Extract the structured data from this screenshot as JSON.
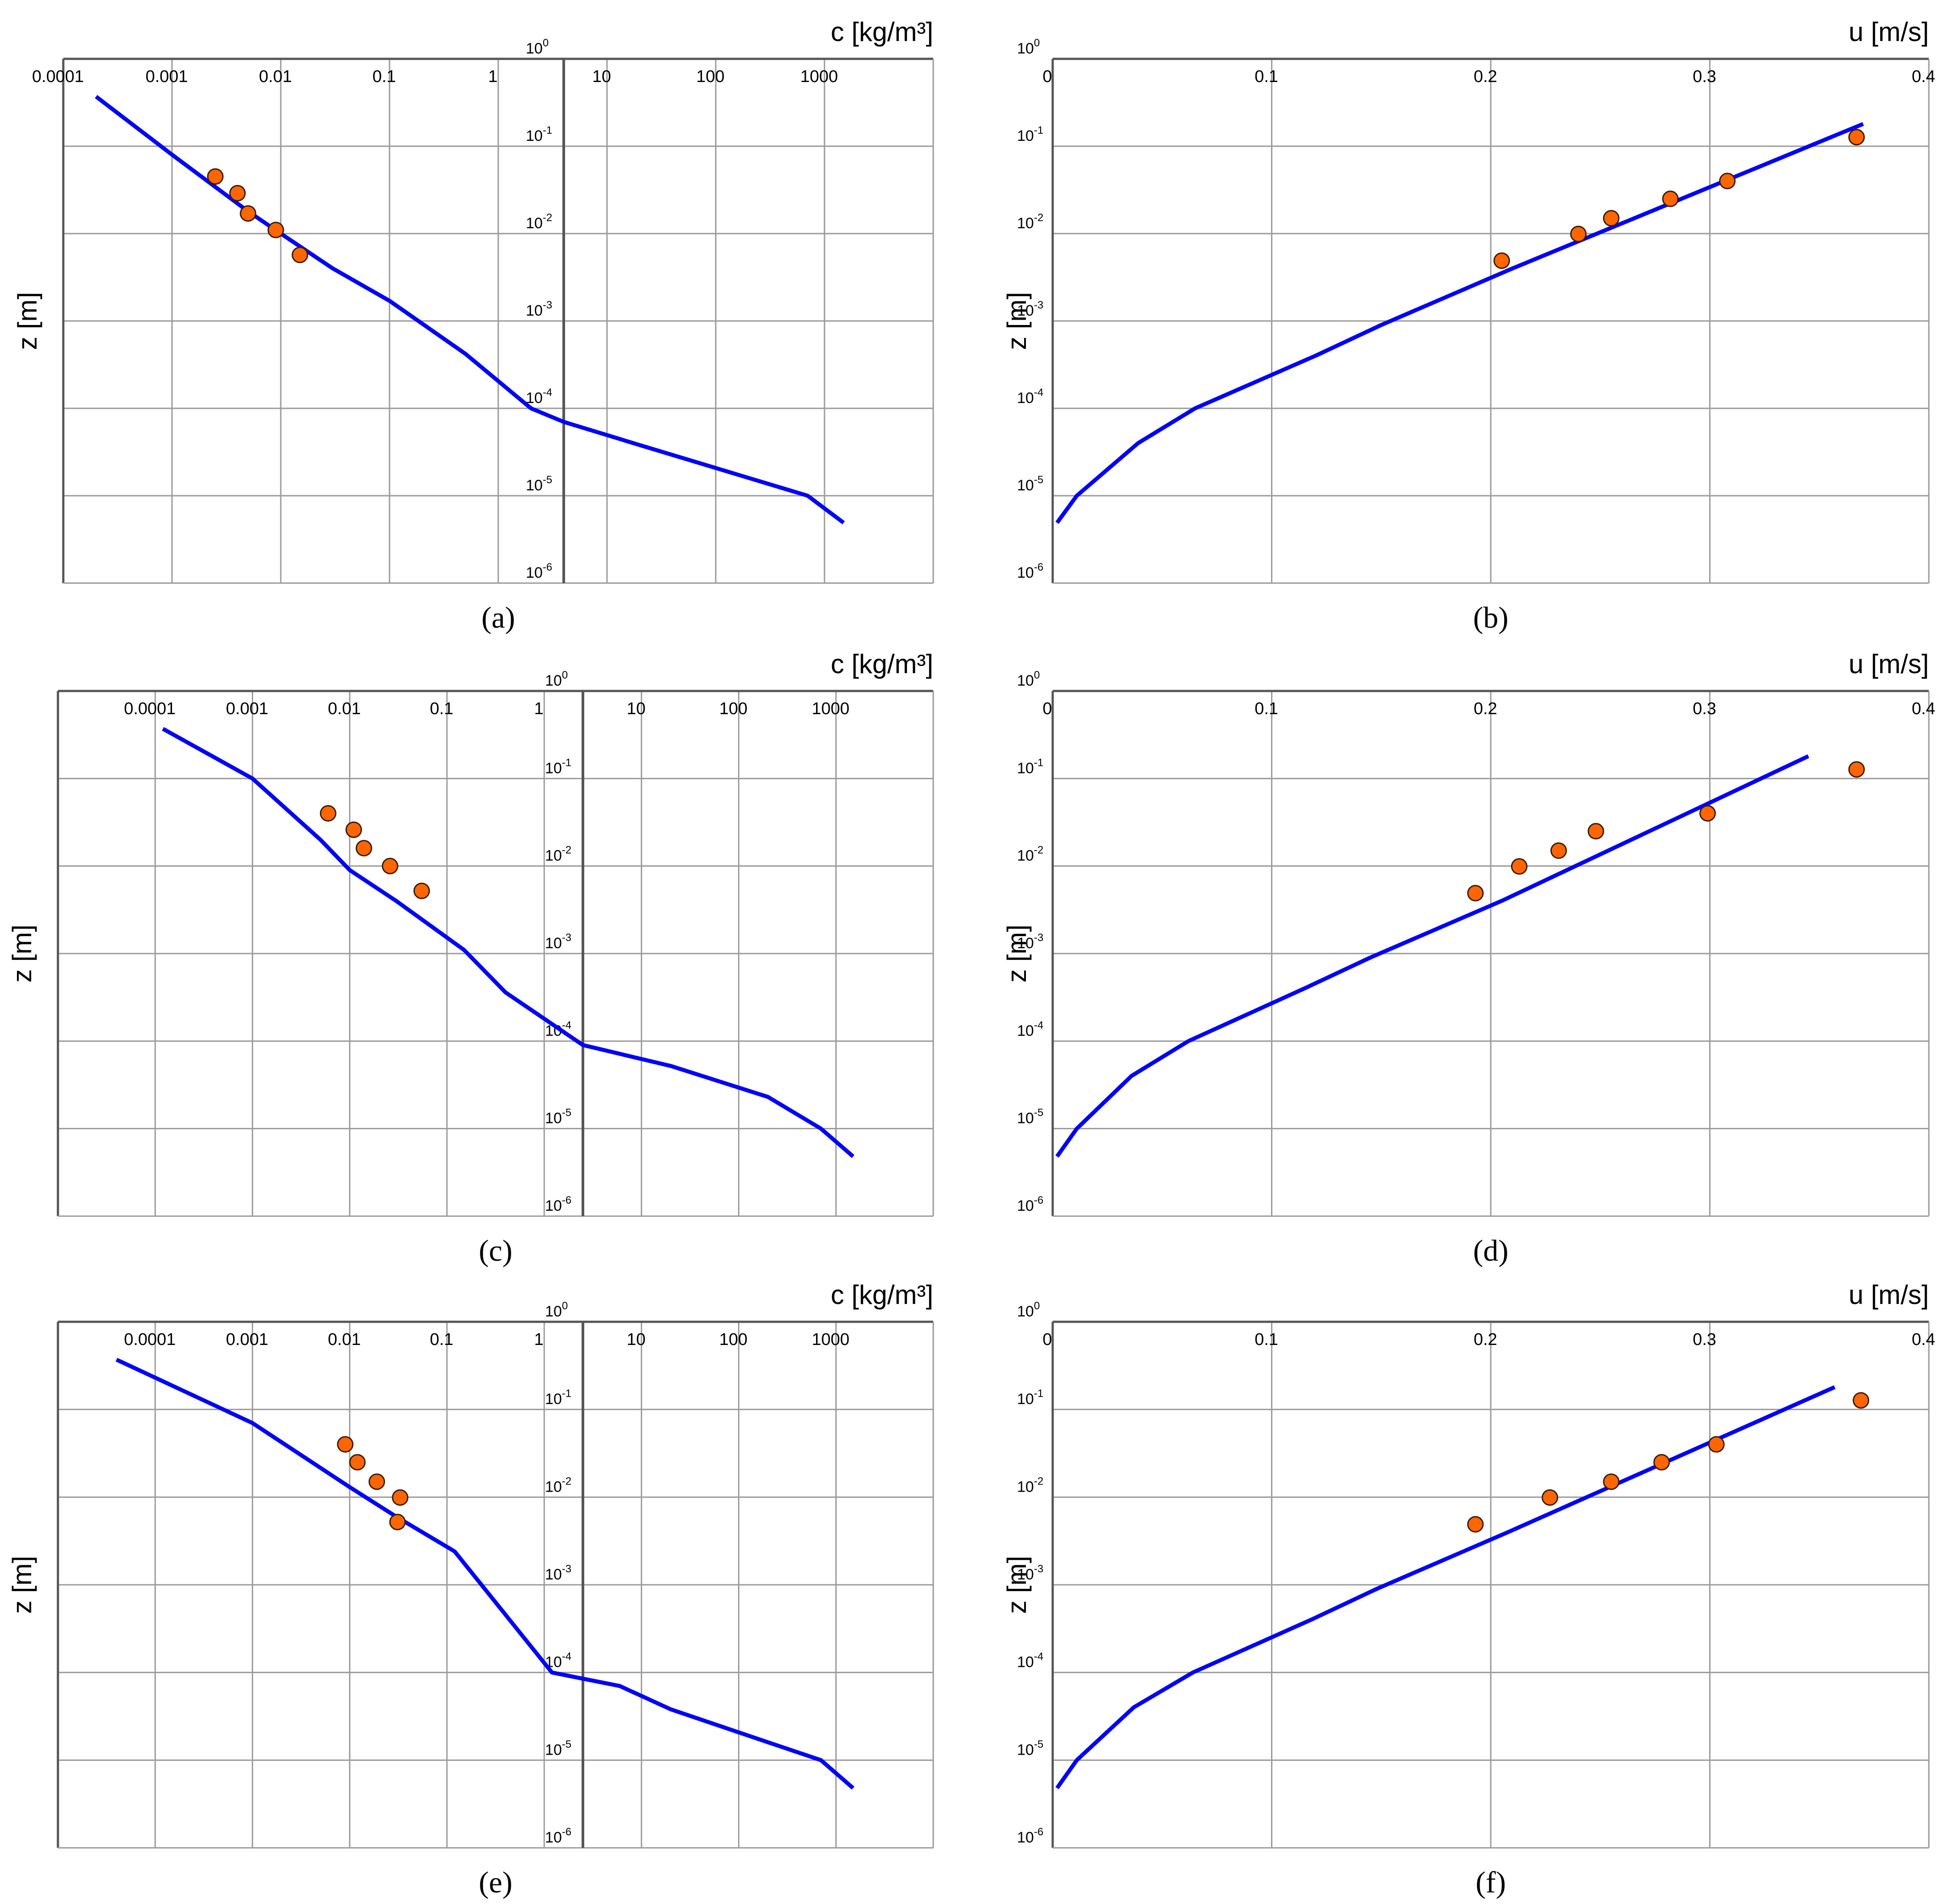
{
  "chart_data": [
    {
      "type": "line",
      "panel_label": "(a)",
      "x_unit_label": "c [kg/m³]",
      "ylabel": "z [m]",
      "xscale": "log",
      "yscale": "log",
      "xlim": [
        0.0001,
        10000
      ],
      "ylim": [
        1,
        1e-06
      ],
      "x_ticks": [
        0.0001,
        0.001,
        0.01,
        0.1,
        1,
        10,
        100,
        1000
      ],
      "x_tick_labels": [
        "0.0001",
        "0.001",
        "0.01",
        "0.1",
        "1",
        "10",
        "100",
        "1000"
      ],
      "y_ticks": [
        1,
        0.1,
        0.01,
        0.001,
        0.0001,
        1e-05,
        1e-06
      ],
      "y_tick_labels": [
        [
          "10",
          "0"
        ],
        [
          "10",
          "-1"
        ],
        [
          "10",
          "-2"
        ],
        [
          "10",
          "-3"
        ],
        [
          "10",
          "-4"
        ],
        [
          "10",
          "-5"
        ],
        [
          "10",
          "-6"
        ]
      ],
      "grid": true,
      "y_axis_at_x": 4,
      "line": {
        "x": [
          0.0002,
          0.001,
          0.005,
          0.01,
          0.03,
          0.1,
          0.5,
          2,
          4,
          20,
          200,
          700,
          1500
        ],
        "y": [
          0.37,
          0.08,
          0.018,
          0.01,
          0.004,
          0.0017,
          0.00042,
          0.0001,
          7e-05,
          3.8e-05,
          1.6e-05,
          1e-05,
          4.9e-06
        ]
      },
      "points": {
        "x": [
          0.0025,
          0.004,
          0.005,
          0.009,
          0.015
        ],
        "y": [
          0.045,
          0.029,
          0.017,
          0.011,
          0.0057
        ]
      },
      "colors": {
        "line": "#0000ff",
        "points": "#ff6600"
      }
    },
    {
      "type": "line",
      "panel_label": "(b)",
      "x_unit_label": "u [m/s]",
      "ylabel": "z [m]",
      "xscale": "linear",
      "yscale": "log",
      "xlim": [
        0,
        0.4
      ],
      "ylim": [
        1,
        1e-06
      ],
      "x_ticks": [
        0,
        0.1,
        0.2,
        0.3,
        0.4
      ],
      "x_tick_labels": [
        "0",
        "0.1",
        "0.2",
        "0.3",
        "0.4"
      ],
      "y_ticks": [
        1,
        0.1,
        0.01,
        0.001,
        0.0001,
        1e-05,
        1e-06
      ],
      "y_tick_labels": [
        [
          "10",
          "0"
        ],
        [
          "10",
          "-1"
        ],
        [
          "10",
          "-2"
        ],
        [
          "10",
          "-3"
        ],
        [
          "10",
          "-4"
        ],
        [
          "10",
          "-5"
        ],
        [
          "10",
          "-6"
        ]
      ],
      "grid": true,
      "line": {
        "x": [
          0.002,
          0.011,
          0.039,
          0.065,
          0.12,
          0.15,
          0.21,
          0.37
        ],
        "y": [
          4.9e-06,
          1e-05,
          4e-05,
          0.0001,
          0.0004,
          0.0009,
          0.004,
          0.18
        ]
      },
      "points": {
        "x": [
          0.205,
          0.24,
          0.255,
          0.282,
          0.308,
          0.367
        ],
        "y": [
          0.0049,
          0.0099,
          0.015,
          0.025,
          0.04,
          0.127
        ]
      },
      "colors": {
        "line": "#0000ff",
        "points": "#ff6600"
      }
    },
    {
      "type": "line",
      "panel_label": "(c)",
      "x_unit_label": "c [kg/m³]",
      "ylabel": "z [m]",
      "xscale": "log",
      "yscale": "log",
      "xlim": [
        1e-05,
        10000
      ],
      "ylim": [
        1,
        1e-06
      ],
      "x_ticks": [
        0.0001,
        0.001,
        0.01,
        0.1,
        1,
        10,
        100,
        1000
      ],
      "x_tick_labels": [
        "0.0001",
        "0.001",
        "0.01",
        "0.1",
        "1",
        "10",
        "100",
        "1000"
      ],
      "y_ticks": [
        1,
        0.1,
        0.01,
        0.001,
        0.0001,
        1e-05,
        1e-06
      ],
      "y_tick_labels": [
        [
          "10",
          "0"
        ],
        [
          "10",
          "-1"
        ],
        [
          "10",
          "-2"
        ],
        [
          "10",
          "-3"
        ],
        [
          "10",
          "-4"
        ],
        [
          "10",
          "-5"
        ],
        [
          "10",
          "-6"
        ]
      ],
      "grid": true,
      "y_axis_at_x": 2.5,
      "line": {
        "x": [
          0.00012,
          0.001,
          0.005,
          0.01,
          0.03,
          0.15,
          0.4,
          2.5,
          20,
          200,
          700,
          1500
        ],
        "y": [
          0.37,
          0.1,
          0.02,
          0.009,
          0.004,
          0.0011,
          0.00036,
          9e-05,
          5.2e-05,
          2.3e-05,
          1e-05,
          4.8e-06
        ]
      },
      "points": {
        "x": [
          0.006,
          0.011,
          0.014,
          0.026,
          0.055
        ],
        "y": [
          0.04,
          0.026,
          0.016,
          0.01,
          0.0052
        ]
      },
      "colors": {
        "line": "#0000ff",
        "points": "#ff6600"
      }
    },
    {
      "type": "line",
      "panel_label": "(d)",
      "x_unit_label": "u [m/s]",
      "ylabel": "z [m]",
      "xscale": "linear",
      "yscale": "log",
      "xlim": [
        0,
        0.4
      ],
      "ylim": [
        1,
        1e-06
      ],
      "x_ticks": [
        0,
        0.1,
        0.2,
        0.3,
        0.4
      ],
      "x_tick_labels": [
        "0",
        "0.1",
        "0.2",
        "0.3",
        "0.4"
      ],
      "y_ticks": [
        1,
        0.1,
        0.01,
        0.001,
        0.0001,
        1e-05,
        1e-06
      ],
      "y_tick_labels": [
        [
          "10",
          "0"
        ],
        [
          "10",
          "-1"
        ],
        [
          "10",
          "-2"
        ],
        [
          "10",
          "-3"
        ],
        [
          "10",
          "-4"
        ],
        [
          "10",
          "-5"
        ],
        [
          "10",
          "-6"
        ]
      ],
      "grid": true,
      "line": {
        "x": [
          0.002,
          0.011,
          0.036,
          0.062,
          0.115,
          0.145,
          0.205,
          0.345
        ],
        "y": [
          4.8e-06,
          1e-05,
          4e-05,
          0.0001,
          0.0004,
          0.0009,
          0.004,
          0.18
        ]
      },
      "points": {
        "x": [
          0.193,
          0.213,
          0.231,
          0.248,
          0.299,
          0.367
        ],
        "y": [
          0.0049,
          0.0099,
          0.015,
          0.025,
          0.04,
          0.127
        ]
      },
      "colors": {
        "line": "#0000ff",
        "points": "#ff6600"
      }
    },
    {
      "type": "line",
      "panel_label": "(e)",
      "x_unit_label": "c [kg/m³]",
      "ylabel": "z [m]",
      "xscale": "log",
      "yscale": "log",
      "xlim": [
        1e-05,
        10000
      ],
      "ylim": [
        1,
        1e-06
      ],
      "x_ticks": [
        0.0001,
        0.001,
        0.01,
        0.1,
        1,
        10,
        100,
        1000
      ],
      "x_tick_labels": [
        "0.0001",
        "0.001",
        "0.01",
        "0.1",
        "1",
        "10",
        "100",
        "1000"
      ],
      "y_ticks": [
        1,
        0.1,
        0.01,
        0.001,
        0.0001,
        1e-05,
        1e-06
      ],
      "y_tick_labels": [
        [
          "10",
          "0"
        ],
        [
          "10",
          "-1"
        ],
        [
          "10",
          "-2"
        ],
        [
          "10",
          "-3"
        ],
        [
          "10",
          "-4"
        ],
        [
          "10",
          "-5"
        ],
        [
          "10",
          "-6"
        ]
      ],
      "grid": true,
      "y_axis_at_x": 2.5,
      "line": {
        "x": [
          4e-05,
          0.001,
          0.01,
          0.03,
          0.12,
          1.2,
          6,
          20,
          200,
          700,
          1500
        ],
        "y": [
          0.37,
          0.07,
          0.013,
          0.006,
          0.0024,
          0.0001,
          7e-05,
          3.8e-05,
          1.6e-05,
          1e-05,
          4.8e-06
        ]
      },
      "points": {
        "x": [
          0.009,
          0.012,
          0.019,
          0.033,
          0.031
        ],
        "y": [
          0.04,
          0.025,
          0.015,
          0.0099,
          0.0052
        ]
      },
      "colors": {
        "line": "#0000ff",
        "points": "#ff6600"
      }
    },
    {
      "type": "line",
      "panel_label": "(f)",
      "x_unit_label": "u [m/s]",
      "ylabel": "z [m]",
      "xscale": "linear",
      "yscale": "log",
      "xlim": [
        0,
        0.4
      ],
      "ylim": [
        1,
        1e-06
      ],
      "x_ticks": [
        0,
        0.1,
        0.2,
        0.3,
        0.4
      ],
      "x_tick_labels": [
        "0",
        "0.1",
        "0.2",
        "0.3",
        "0.4"
      ],
      "y_ticks": [
        1,
        0.1,
        0.01,
        0.001,
        0.0001,
        1e-05,
        1e-06
      ],
      "y_tick_labels": [
        [
          "10",
          "0"
        ],
        [
          "10",
          "-1"
        ],
        [
          "10",
          "-2"
        ],
        [
          "10",
          "-3"
        ],
        [
          "10",
          "-4"
        ],
        [
          "10",
          "-5"
        ],
        [
          "10",
          "-6"
        ]
      ],
      "grid": true,
      "line": {
        "x": [
          0.002,
          0.011,
          0.037,
          0.064,
          0.118,
          0.148,
          0.208,
          0.357
        ],
        "y": [
          4.8e-06,
          1e-05,
          4e-05,
          0.0001,
          0.0004,
          0.0009,
          0.004,
          0.18
        ]
      },
      "points": {
        "x": [
          0.193,
          0.227,
          0.255,
          0.278,
          0.303,
          0.369
        ],
        "y": [
          0.0049,
          0.0099,
          0.015,
          0.025,
          0.04,
          0.127
        ]
      },
      "colors": {
        "line": "#0000ff",
        "points": "#ff6600"
      }
    }
  ]
}
